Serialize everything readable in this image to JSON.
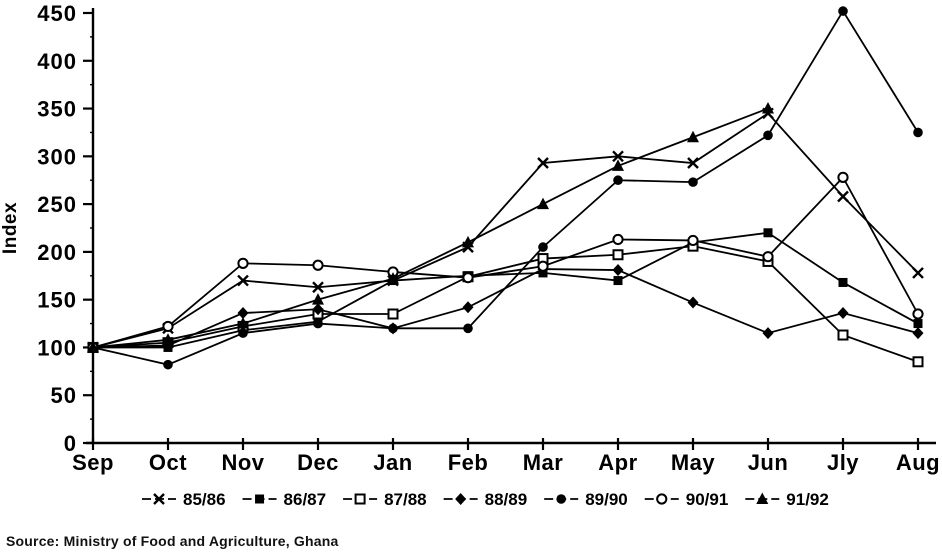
{
  "page": {
    "source_note": "Source:  Ministry of Food and Agriculture, Ghana"
  },
  "chart_data": {
    "type": "line",
    "title": "",
    "xlabel": "",
    "ylabel": "Index",
    "ylim": [
      0,
      450
    ],
    "ytick_step": 50,
    "yticks": [
      0,
      50,
      100,
      150,
      200,
      250,
      300,
      350,
      400,
      450
    ],
    "grid": false,
    "legend_position": "bottom",
    "categories": [
      "Sep",
      "Oct",
      "Nov",
      "Dec",
      "Jan",
      "Feb",
      "Mar",
      "Apr",
      "May",
      "Jun",
      "Jly",
      "Aug"
    ],
    "series": [
      {
        "name": "85/86",
        "marker": "x-cross-icon",
        "values": [
          100,
          120,
          170,
          163,
          170,
          205,
          293,
          300,
          293,
          345,
          258,
          178
        ]
      },
      {
        "name": "86/87",
        "marker": "filled-square-icon",
        "values": [
          100,
          100,
          118,
          127,
          170,
          175,
          178,
          170,
          210,
          220,
          168,
          125
        ]
      },
      {
        "name": "87/88",
        "marker": "open-square-icon",
        "values": [
          100,
          105,
          122,
          135,
          135,
          174,
          193,
          197,
          206,
          190,
          113,
          85
        ]
      },
      {
        "name": "88/89",
        "marker": "filled-diamond-icon",
        "values": [
          100,
          102,
          136,
          140,
          120,
          142,
          182,
          181,
          147,
          115,
          136,
          115
        ]
      },
      {
        "name": "89/90",
        "marker": "filled-circle-icon",
        "values": [
          100,
          82,
          115,
          125,
          120,
          120,
          205,
          275,
          273,
          322,
          452,
          325
        ]
      },
      {
        "name": "90/91",
        "marker": "open-circle-icon",
        "values": [
          100,
          122,
          188,
          186,
          179,
          173,
          185,
          213,
          212,
          195,
          278,
          135
        ]
      },
      {
        "name": "91/92",
        "marker": "filled-triangle-icon",
        "values": [
          100,
          108,
          125,
          150,
          172,
          210,
          250,
          290,
          320,
          350,
          null,
          null
        ]
      }
    ],
    "line_color": "#000000",
    "background_color": "#ffffff"
  }
}
